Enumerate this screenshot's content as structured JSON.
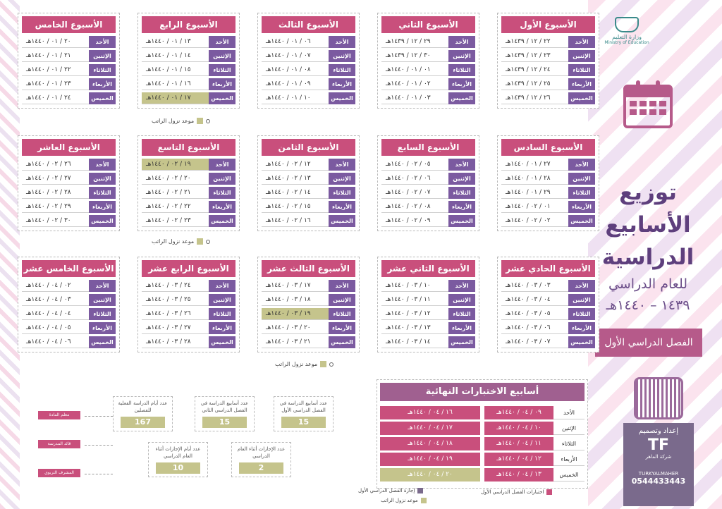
{
  "header": {
    "logo_text": "وزارة التعليم",
    "logo_subtext": "Ministry of Education",
    "title_line1": "توزيع",
    "title_line2": "الأسابيع",
    "title_line3": "الدراسية",
    "subtitle_line1": "للعام الدراسي",
    "subtitle_line2": "١٤٣٩ – ١٤٤٠هـ",
    "semester": "الفصل الدراسي الأول"
  },
  "days": [
    "الأحد",
    "الإثنين",
    "الثلاثاء",
    "الأربعاء",
    "الخميس"
  ],
  "weeks": [
    {
      "title": "الأسبوع الأول",
      "dates": [
        "٢٢ / ١٢ / ١٤٣٩هـ",
        "٢٣ / ١٢ / ١٤٣٩هـ",
        "٢٤ / ١٢ / ١٤٣٩هـ",
        "٢٥ / ١٢ / ١٤٣٩هـ",
        "٢٦ / ١٢ / ١٤٣٩هـ"
      ]
    },
    {
      "title": "الأسبوع الثاني",
      "dates": [
        "٢٩ / ١٢ / ١٤٣٩هـ",
        "٣٠ / ١٢ / ١٤٣٩هـ",
        "٠١ / ٠١ / ١٤٤٠هـ",
        "٠٢ / ٠١ / ١٤٤٠هـ",
        "٠٣ / ٠١ / ١٤٤٠هـ"
      ]
    },
    {
      "title": "الأسبوع الثالث",
      "dates": [
        "٠٦ / ٠١ / ١٤٤٠هـ",
        "٠٧ / ٠١ / ١٤٤٠هـ",
        "٠٨ / ٠١ / ١٤٤٠هـ",
        "٠٩ / ٠١ / ١٤٤٠هـ",
        "١٠ / ٠١ / ١٤٤٠هـ"
      ]
    },
    {
      "title": "الأسبوع الرابع",
      "dates": [
        "١٣ / ٠١ / ١٤٤٠هـ",
        "١٤ / ٠١ / ١٤٤٠هـ",
        "١٥ / ٠١ / ١٤٤٠هـ",
        "١٦ / ٠١ / ١٤٤٠هـ",
        "١٧ / ٠١ / ١٤٤٠هـ"
      ],
      "highlight": 4
    },
    {
      "title": "الأسبوع الخامس",
      "dates": [
        "٢٠ / ٠١ / ١٤٤٠هـ",
        "٢١ / ٠١ / ١٤٤٠هـ",
        "٢٢ / ٠١ / ١٤٤٠هـ",
        "٢٣ / ٠١ / ١٤٤٠هـ",
        "٢٤ / ٠١ / ١٤٤٠هـ"
      ]
    },
    {
      "title": "الأسبوع السادس",
      "dates": [
        "٢٧ / ٠١ / ١٤٤٠هـ",
        "٢٨ / ٠١ / ١٤٤٠هـ",
        "٢٩ / ٠١ / ١٤٤٠هـ",
        "٠١ / ٠٢ / ١٤٤٠هـ",
        "٠٢ / ٠٢ / ١٤٤٠هـ"
      ]
    },
    {
      "title": "الأسبوع السابع",
      "dates": [
        "٠٥ / ٠٢ / ١٤٤٠هـ",
        "٠٦ / ٠٢ / ١٤٤٠هـ",
        "٠٧ / ٠٢ / ١٤٤٠هـ",
        "٠٨ / ٠٢ / ١٤٤٠هـ",
        "٠٩ / ٠٢ / ١٤٤٠هـ"
      ]
    },
    {
      "title": "الأسبوع الثامن",
      "dates": [
        "١٢ / ٠٢ / ١٤٤٠هـ",
        "١٣ / ٠٢ / ١٤٤٠هـ",
        "١٤ / ٠٢ / ١٤٤٠هـ",
        "١٥ / ٠٢ / ١٤٤٠هـ",
        "١٦ / ٠٢ / ١٤٤٠هـ"
      ]
    },
    {
      "title": "الأسبوع التاسع",
      "dates": [
        "١٩ / ٠٢ / ١٤٤٠هـ",
        "٢٠ / ٠٢ / ١٤٤٠هـ",
        "٢١ / ٠٢ / ١٤٤٠هـ",
        "٢٢ / ٠٢ / ١٤٤٠هـ",
        "٢٣ / ٠٢ / ١٤٤٠هـ"
      ],
      "highlight": 0
    },
    {
      "title": "الأسبوع العاشر",
      "dates": [
        "٢٦ / ٠٢ / ١٤٤٠هـ",
        "٢٧ / ٠٢ / ١٤٤٠هـ",
        "٢٨ / ٠٢ / ١٤٤٠هـ",
        "٢٩ / ٠٢ / ١٤٤٠هـ",
        "٣٠ / ٠٢ / ١٤٤٠هـ"
      ]
    },
    {
      "title": "الأسبوع الحادي عشر",
      "dates": [
        "٠٣ / ٠٣ / ١٤٤٠هـ",
        "٠٤ / ٠٣ / ١٤٤٠هـ",
        "٠٥ / ٠٣ / ١٤٤٠هـ",
        "٠٦ / ٠٣ / ١٤٤٠هـ",
        "٠٧ / ٠٣ / ١٤٤٠هـ"
      ]
    },
    {
      "title": "الأسبوع الثاني عشر",
      "dates": [
        "١٠ / ٠٣ / ١٤٤٠هـ",
        "١١ / ٠٣ / ١٤٤٠هـ",
        "١٢ / ٠٣ / ١٤٤٠هـ",
        "١٣ / ٠٣ / ١٤٤٠هـ",
        "١٤ / ٠٣ / ١٤٤٠هـ"
      ]
    },
    {
      "title": "الأسبوع الثالث عشر",
      "dates": [
        "١٧ / ٠٣ / ١٤٤٠هـ",
        "١٨ / ٠٣ / ١٤٤٠هـ",
        "١٩ / ٠٣ / ١٤٤٠هـ",
        "٢٠ / ٠٣ / ١٤٤٠هـ",
        "٢١ / ٠٣ / ١٤٤٠هـ"
      ],
      "highlight": 2
    },
    {
      "title": "الأسبوع الرابع عشر",
      "dates": [
        "٢٤ / ٠٣ / ١٤٤٠هـ",
        "٢٥ / ٠٣ / ١٤٤٠هـ",
        "٢٦ / ٠٣ / ١٤٤٠هـ",
        "٢٧ / ٠٣ / ١٤٤٠هـ",
        "٢٨ / ٠٣ / ١٤٤٠هـ"
      ]
    },
    {
      "title": "الأسبوع الخامس عشر",
      "dates": [
        "٠٢ / ٠٤ / ١٤٤٠هـ",
        "٠٣ / ٠٤ / ١٤٤٠هـ",
        "٠٤ / ٠٤ / ١٤٤٠هـ",
        "٠٥ / ٠٤ / ١٤٤٠هـ",
        "٠٦ / ٠٤ / ١٤٤٠هـ"
      ]
    }
  ],
  "salary_note": "موعد نزول الراتب",
  "finals": {
    "title": "أسابيع الاختبارات النهائية",
    "col1": [
      "٠٩ / ٠٤ / ١٤٤٠هـ",
      "١٠ / ٠٤ / ١٤٤٠هـ",
      "١١ / ٠٤ / ١٤٤٠هـ",
      "١٢ / ٠٤ / ١٤٤٠هـ",
      "١٣ / ٠٤ / ١٤٤٠هـ"
    ],
    "col2": [
      "١٦ / ٠٤ / ١٤٤٠هـ",
      "١٧ / ٠٤ / ١٤٤٠هـ",
      "١٨ / ٠٤ / ١٤٤٠هـ",
      "١٩ / ٠٤ / ١٤٤٠هـ",
      "٢٠ / ٠٤ / ١٤٤٠هـ"
    ],
    "legend_exams": "اختبارات الفصل الدراسي الأول",
    "legend_holiday": "إجازة الفصل الدراسي الأول",
    "legend_salary": "موعد نزول الراتب"
  },
  "stats": [
    {
      "label": "عدد أسابيع الدراسة في الفصل الدراسي الأول",
      "value": "15"
    },
    {
      "label": "عدد أسابيع الدراسة في الفصل الدراسي الثاني",
      "value": "15"
    },
    {
      "label": "عدد أيام الدراسة الفعلية للفصلين",
      "value": "167"
    },
    {
      "label": "عدد الإجازات أثناء العام الدراسي",
      "value": "2"
    },
    {
      "label": "عدد أيام الإجازات أثناء العام الدراسي",
      "value": "10"
    }
  ],
  "signatures": [
    "معلم المادة",
    "قائد المدرسة",
    "المشرف التربوي"
  ],
  "credits": {
    "prepared": "إعداد وتصميم",
    "logo": "TF",
    "company": "شركة الماهر",
    "handle": "TURKYALMAHER",
    "phone": "0544433443"
  }
}
